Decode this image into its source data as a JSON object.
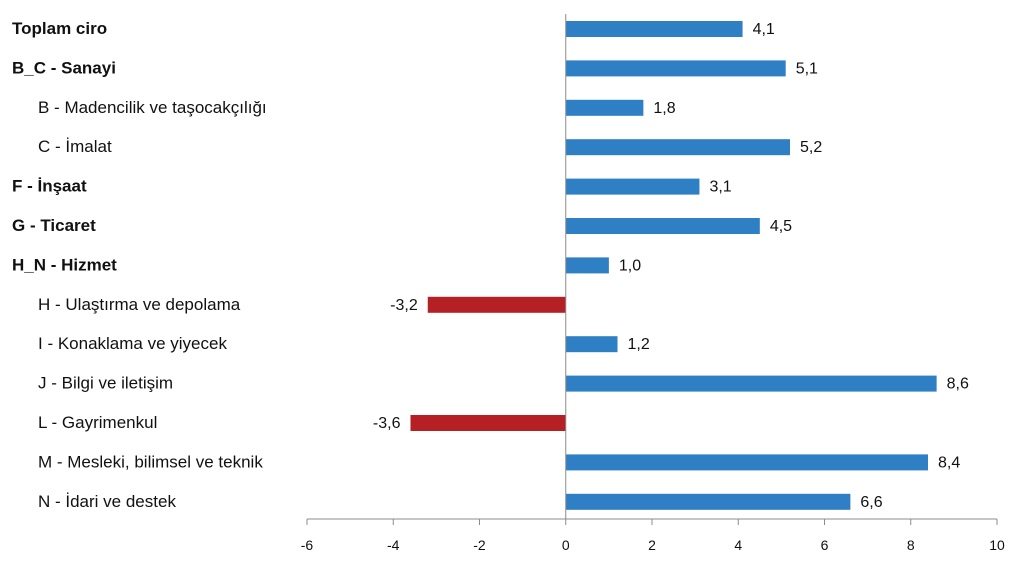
{
  "chart_data": {
    "type": "bar",
    "orientation": "horizontal",
    "categories": [
      "Toplam ciro",
      "B_C - Sanayi",
      "B - Madencilik ve taşocakçılığı",
      "C - İmalat",
      "F - İnşaat",
      "G - Ticaret",
      "H_N - Hizmet",
      "H - Ulaştırma ve depolama",
      "I - Konaklama ve yiyecek",
      "J - Bilgi ve iletişim",
      "L - Gayrimenkul",
      "M - Mesleki, bilimsel ve teknik",
      "N - İdari ve destek"
    ],
    "bold_categories": [
      true,
      true,
      false,
      false,
      true,
      true,
      true,
      false,
      false,
      false,
      false,
      false,
      false
    ],
    "indented_categories": [
      false,
      false,
      true,
      true,
      false,
      false,
      false,
      true,
      true,
      true,
      true,
      true,
      true
    ],
    "values": [
      4.1,
      5.1,
      1.8,
      5.2,
      3.1,
      4.5,
      1.0,
      -3.2,
      1.2,
      8.6,
      -3.6,
      8.4,
      6.6
    ],
    "value_labels": [
      "4,1",
      "5,1",
      "1,8",
      "5,2",
      "3,1",
      "4,5",
      "1,0",
      "-3,2",
      "1,2",
      "8,6",
      "-3,6",
      "8,4",
      "6,6"
    ],
    "xlim": [
      -6,
      10
    ],
    "xticks": [
      -6,
      -4,
      -2,
      0,
      2,
      4,
      6,
      8,
      10
    ],
    "xtick_labels": [
      "-6",
      "-4",
      "-2",
      "0",
      "2",
      "4",
      "6",
      "8",
      "10"
    ],
    "title": "",
    "xlabel": "",
    "ylabel": "",
    "grid": false,
    "colors": {
      "positive": "#2f7fc5",
      "negative": "#b52025",
      "axis": "#8c8c8c",
      "text": "#111111"
    }
  }
}
